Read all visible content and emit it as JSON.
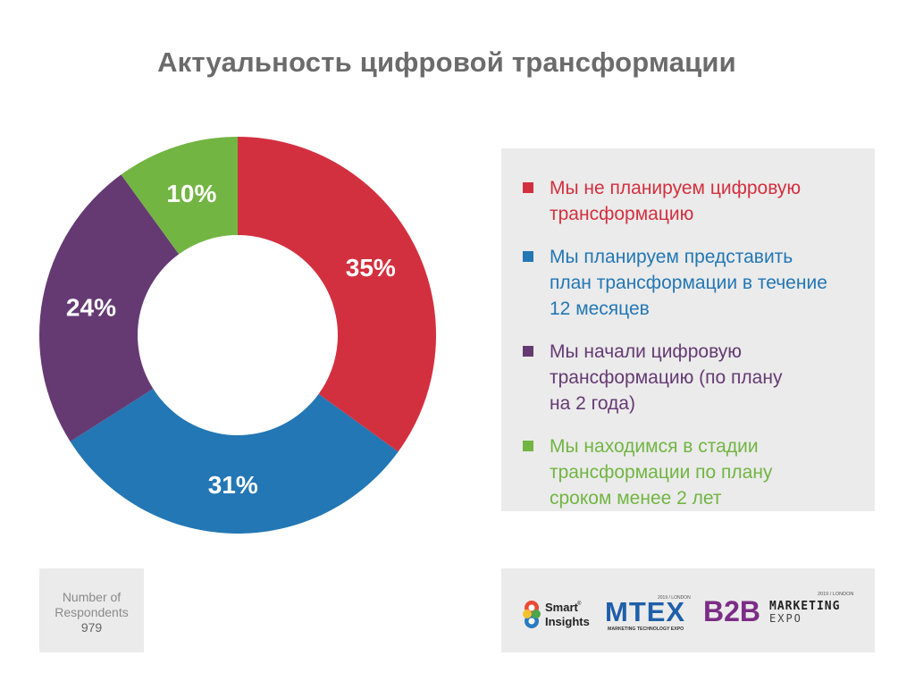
{
  "chart_data": {
    "type": "pie",
    "title": "Актуальность цифровой трансформации",
    "categories": [
      "Мы не планируем цифровую трансформацию",
      "Мы планируем представить план трансформации в течение 12 месяцев",
      "Мы начали цифровую трансформацию (по плану на 2 года)",
      "Мы находимся в стадии трансформации по плану сроком менее 2 лет"
    ],
    "values": [
      35,
      31,
      24,
      10
    ],
    "labels": [
      "35%",
      "31%",
      "24%",
      "10%"
    ],
    "colors": [
      "#d3303f",
      "#2377b4",
      "#653a73",
      "#72b543"
    ],
    "legend_position": "right"
  },
  "legend": [
    {
      "line1": "Мы не планируем цифровую",
      "line2": "трансформацию",
      "line3": "",
      "color": "#d3303f"
    },
    {
      "line1": "Мы планируем представить",
      "line2": "план трансформации в течение",
      "line3": "12 месяцев",
      "color": "#2377b4"
    },
    {
      "line1": "Мы начали цифровую",
      "line2": "трансформацию (по плану",
      "line3": "на 2 года)",
      "color": "#653a73"
    },
    {
      "line1": "Мы находимся в стадии",
      "line2": "трансформации по плану",
      "line3": "сроком менее 2 лет",
      "color": "#72b543"
    }
  ],
  "respondents": {
    "line1": "Number of",
    "line2": "Respondents",
    "count": "979"
  },
  "logos": {
    "smart_insights": {
      "line1": "Smart",
      "line2": "Insights",
      "reg": "®"
    },
    "mtex": {
      "name": "MTEX",
      "tag": "2019 / LONDON",
      "sub": "MARKETING TECHNOLOGY EXPO",
      "color": "#1f5fa8"
    },
    "b2b": {
      "name": "B2B",
      "word1": "MARKETING",
      "word2": "EXPO",
      "tag": "2019 / LONDON",
      "color": "#7b2d86"
    }
  }
}
